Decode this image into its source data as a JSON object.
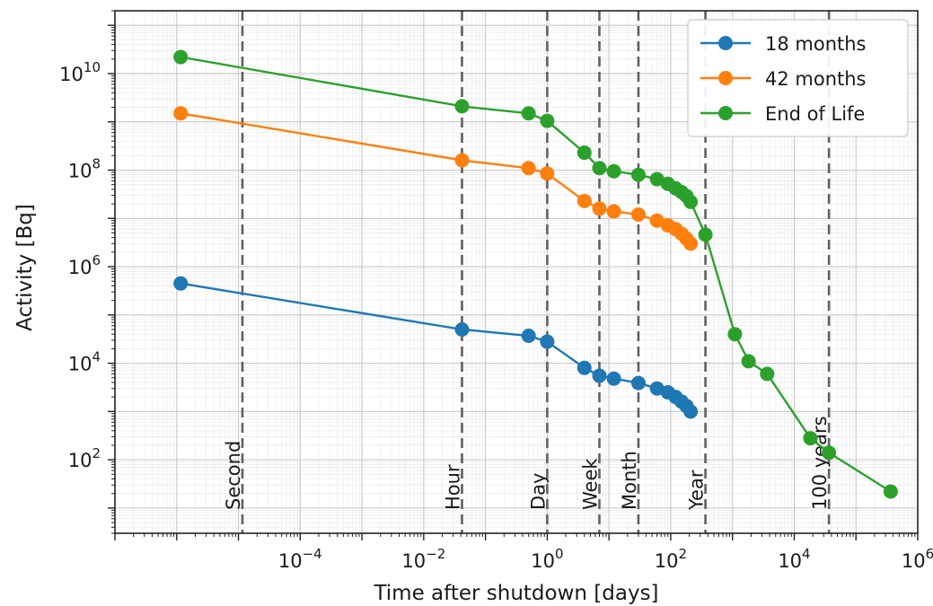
{
  "chart_data": {
    "type": "line",
    "xlabel": "Time after shutdown [days]",
    "ylabel": "Activity [Bq]",
    "xscale": "log",
    "yscale": "log",
    "xlim": [
      1e-07,
      1000000
    ],
    "ylim": [
      3,
      200000000000
    ],
    "grid": true,
    "legend_position": "top-right",
    "x_ticks": [
      {
        "value": 0.0001,
        "base": "10",
        "exp": "−4"
      },
      {
        "value": 0.01,
        "base": "10",
        "exp": "−2"
      },
      {
        "value": 1,
        "base": "10",
        "exp": "0"
      },
      {
        "value": 100,
        "base": "10",
        "exp": "2"
      },
      {
        "value": 10000,
        "base": "10",
        "exp": "4"
      },
      {
        "value": 1000000,
        "base": "10",
        "exp": "6"
      }
    ],
    "y_ticks": [
      {
        "value": 100,
        "base": "10",
        "exp": "2"
      },
      {
        "value": 10000,
        "base": "10",
        "exp": "4"
      },
      {
        "value": 1000000,
        "base": "10",
        "exp": "6"
      },
      {
        "value": 100000000,
        "base": "10",
        "exp": "8"
      },
      {
        "value": 10000000000,
        "base": "10",
        "exp": "10"
      }
    ],
    "reference_lines": [
      {
        "label": "Second",
        "x": 1.16e-05
      },
      {
        "label": "Hour",
        "x": 0.0417
      },
      {
        "label": "Day",
        "x": 1
      },
      {
        "label": "Week",
        "x": 7
      },
      {
        "label": "Month",
        "x": 30
      },
      {
        "label": "Year",
        "x": 365
      },
      {
        "label": "100 years",
        "x": 36500
      }
    ],
    "series": [
      {
        "name": "18 months",
        "color": "#1f77b4",
        "x": [
          1.16e-06,
          0.0417,
          0.5,
          1,
          4,
          7,
          12,
          30,
          60,
          90,
          120,
          150,
          180,
          210
        ],
        "y": [
          450000,
          50000,
          37000,
          28000,
          8000,
          5500,
          4800,
          3900,
          3000,
          2500,
          2000,
          1600,
          1300,
          1000
        ]
      },
      {
        "name": "42 months",
        "color": "#ff7f0e",
        "x": [
          1.16e-06,
          0.0417,
          0.5,
          1,
          4,
          7,
          12,
          30,
          60,
          90,
          120,
          150,
          180,
          210
        ],
        "y": [
          1500000000,
          160000000,
          110000000,
          85000000,
          23000000,
          16000000,
          14000000,
          12000000,
          9000000,
          7200000,
          6000000,
          4800000,
          3800000,
          3000000
        ]
      },
      {
        "name": "End of Life",
        "color": "#2ca02c",
        "x": [
          1.16e-06,
          0.0417,
          0.5,
          1,
          4,
          7,
          12,
          30,
          60,
          90,
          120,
          150,
          180,
          210,
          365,
          1095,
          1826,
          3650,
          18250,
          36500,
          365000
        ],
        "y": [
          22000000000,
          2100000000,
          1500000000,
          1050000000,
          230000000,
          110000000,
          95000000,
          80000000,
          65000000,
          52000000,
          42000000,
          35000000,
          29000000,
          22000000,
          4600000,
          40000,
          11000,
          6000,
          280,
          140,
          22
        ]
      }
    ]
  }
}
